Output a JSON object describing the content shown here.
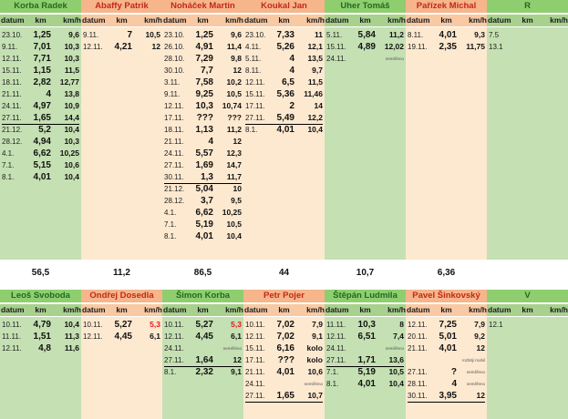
{
  "colors": {
    "green_header": "#8fce6f",
    "green_col": "#c5e0b3",
    "orange_header": "#f6b58a",
    "orange_col": "#fde9d0",
    "green_text": "#1f6b1f",
    "orange_text": "#c0281d",
    "subheader_green": "#a9d18e",
    "subheader_orange": "#f8c9a3"
  },
  "columns_label": {
    "datum": "datum",
    "km": "km",
    "kmh": "km/h"
  },
  "top": {
    "persons": [
      {
        "name": "Korba Radek",
        "theme": "green",
        "total": "56,5",
        "rows": [
          {
            "d": "23.10.",
            "k": "1,25",
            "s": "9,6"
          },
          {
            "d": "9.11.",
            "k": "7,01",
            "s": "10,3"
          },
          {
            "d": "12.11.",
            "k": "7,71",
            "s": "10,3"
          },
          {
            "d": "15.11.",
            "k": "1,15",
            "s": "11,5"
          },
          {
            "d": "18.11.",
            "k": "2,82",
            "s": "12,77"
          },
          {
            "d": "21.11.",
            "k": "4",
            "s": "13,8"
          },
          {
            "d": "24.11.",
            "k": "4,97",
            "s": "10,9"
          },
          {
            "d": "27.11.",
            "k": "1,65",
            "s": "14,4",
            "u": true
          },
          {
            "d": "21.12.",
            "k": "5,2",
            "s": "10,4"
          },
          {
            "d": "28.12.",
            "k": "4,94",
            "s": "10,3"
          },
          {
            "d": "4.1.",
            "k": "6,62",
            "s": "10,25"
          },
          {
            "d": "7.1.",
            "k": "5,15",
            "s": "10,6"
          },
          {
            "d": "8.1.",
            "k": "4,01",
            "s": "10,4"
          }
        ]
      },
      {
        "name": "Abaffy Patrik",
        "theme": "orange",
        "total": "11,2",
        "rows": [
          {
            "d": "9.11.",
            "k": "7",
            "s": "10,5"
          },
          {
            "d": "12.11.",
            "k": "4,21",
            "s": "12"
          }
        ]
      },
      {
        "name": "Noháček Martin",
        "theme": "orange",
        "total": "86,5",
        "rows": [
          {
            "d": "23.10.",
            "k": "1,25",
            "s": "9,6"
          },
          {
            "d": "26.10.",
            "k": "4,91",
            "s": "11,4"
          },
          {
            "d": "28.10.",
            "k": "7,29",
            "s": "9,8"
          },
          {
            "d": "30.10.",
            "k": "7,7",
            "s": "12"
          },
          {
            "d": "3.11.",
            "k": "7,58",
            "s": "10,2"
          },
          {
            "d": "9.11.",
            "k": "9,25",
            "s": "10,5"
          },
          {
            "d": "12.11.",
            "k": "10,3",
            "s": "10,74"
          },
          {
            "d": "17.11.",
            "k": "???",
            "s": "???"
          },
          {
            "d": "18.11.",
            "k": "1,13",
            "s": "11,2"
          },
          {
            "d": "21.11.",
            "k": "4",
            "s": "12"
          },
          {
            "d": "24.11.",
            "k": "5,57",
            "s": "12,3"
          },
          {
            "d": "27.11.",
            "k": "1,69",
            "s": "14,7"
          },
          {
            "d": "30.11.",
            "k": "1,3",
            "s": "11,7",
            "u": true
          },
          {
            "d": "21.12.",
            "k": "5,04",
            "s": "10"
          },
          {
            "d": "28.12.",
            "k": "3,7",
            "s": "9,5"
          },
          {
            "d": "4.1.",
            "k": "6,62",
            "s": "10,25"
          },
          {
            "d": "7.1.",
            "k": "5,19",
            "s": "10,5"
          },
          {
            "d": "8.1.",
            "k": "4,01",
            "s": "10,4"
          }
        ]
      },
      {
        "name": "Koukal Jan",
        "theme": "orange",
        "total": "44",
        "rows": [
          {
            "d": "23.10.",
            "k": "7,33",
            "s": "11"
          },
          {
            "d": "4.11.",
            "k": "5,26",
            "s": "12,1"
          },
          {
            "d": "5.11.",
            "k": "4",
            "s": "13,5"
          },
          {
            "d": "8.11.",
            "k": "4",
            "s": "9,7"
          },
          {
            "d": "12.11.",
            "k": "6,5",
            "s": "11,5"
          },
          {
            "d": "15.11.",
            "k": "5,36",
            "s": "11,46"
          },
          {
            "d": "17.11.",
            "k": "2",
            "s": "14"
          },
          {
            "d": "27.11.",
            "k": "5,49",
            "s": "12,2",
            "u": true
          },
          {
            "d": "8.1.",
            "k": "4,01",
            "s": "10,4"
          }
        ]
      },
      {
        "name": "Uher Tomáš",
        "theme": "green",
        "total": "10,7",
        "rows": [
          {
            "d": "5.11.",
            "k": "5,84",
            "s": "11,2"
          },
          {
            "d": "15.11.",
            "k": "4,89",
            "s": "12,02"
          },
          {
            "d": "24.11.",
            "k": "",
            "s": "neměřeno",
            "note": true
          }
        ]
      },
      {
        "name": "Pařízek Michal",
        "theme": "orange",
        "total": "6,36",
        "rows": [
          {
            "d": "8.11.",
            "k": "4,01",
            "s": "9,3"
          },
          {
            "d": "19.11.",
            "k": "2,35",
            "s": "11,75"
          }
        ]
      },
      {
        "name": "R",
        "theme": "green",
        "total": "",
        "rows": [
          {
            "d": "7.5",
            "k": "",
            "s": ""
          },
          {
            "d": "13.1",
            "k": "",
            "s": ""
          }
        ]
      }
    ]
  },
  "bottom": {
    "persons": [
      {
        "name": "Leoš Svoboda",
        "theme": "green",
        "rows": [
          {
            "d": "10.11.",
            "k": "4,79",
            "s": "10,4"
          },
          {
            "d": "11.11.",
            "k": "1,51",
            "s": "11,3"
          },
          {
            "d": "12.11.",
            "k": "4,8",
            "s": "11,6"
          }
        ]
      },
      {
        "name": "Ondřej Dosedla",
        "theme": "orange",
        "rows": [
          {
            "d": "10.11.",
            "k": "5,27",
            "s": "5,3",
            "red": true
          },
          {
            "d": "12.11.",
            "k": "4,45",
            "s": "6,1"
          }
        ]
      },
      {
        "name": "Šimon Korba",
        "theme": "green",
        "rows": [
          {
            "d": "10.11.",
            "k": "5,27",
            "s": "5,3",
            "red": true
          },
          {
            "d": "12.11.",
            "k": "4,45",
            "s": "6,1"
          },
          {
            "d": "24.11.",
            "k": "",
            "s": "neměřeno",
            "note": true
          },
          {
            "d": "27.11.",
            "k": "1,64",
            "s": "12",
            "u": true
          },
          {
            "d": "8.1.",
            "k": "2,32",
            "s": "9,1"
          }
        ]
      },
      {
        "name": "Petr Pojer",
        "theme": "orange",
        "rows": [
          {
            "d": "10.11.",
            "k": "7,02",
            "s": "7,9"
          },
          {
            "d": "12.11.",
            "k": "7,02",
            "s": "9,1"
          },
          {
            "d": "15.11.",
            "k": "6,16",
            "s": "kolo"
          },
          {
            "d": "17.11.",
            "k": "???",
            "s": "kolo"
          },
          {
            "d": "21.11.",
            "k": "4,01",
            "s": "10,6"
          },
          {
            "d": "24.11.",
            "k": "",
            "s": "neměřeno",
            "note": true
          },
          {
            "d": "27.11.",
            "k": "1,65",
            "s": "10,7",
            "u": true
          }
        ]
      },
      {
        "name": "Štěpán Ludmila",
        "theme": "green",
        "rows": [
          {
            "d": "11.11.",
            "k": "10,3",
            "s": "8"
          },
          {
            "d": "12.11.",
            "k": "6,51",
            "s": "7,4"
          },
          {
            "d": "24.11.",
            "k": "",
            "s": "neměřeno",
            "note": true
          },
          {
            "d": "27.11.",
            "k": "1,71",
            "s": "13,6",
            "u": true
          },
          {
            "d": "7.1.",
            "k": "5,19",
            "s": "10,5"
          },
          {
            "d": "8.1.",
            "k": "4,01",
            "s": "10,4"
          }
        ]
      },
      {
        "name": "Pavel Šinkovský",
        "theme": "orange",
        "rows": [
          {
            "d": "12.11.",
            "k": "7,25",
            "s": "7,9"
          },
          {
            "d": "20.11.",
            "k": "5,01",
            "s": "9,2"
          },
          {
            "d": "21.11.",
            "k": "4,01",
            "s": "12"
          },
          {
            "d": "",
            "k": "",
            "s": "rozbitý mobil",
            "note": true
          },
          {
            "d": "27.11.",
            "k": "?",
            "s": "neměřeno",
            "note": true
          },
          {
            "d": "28.11.",
            "k": "4",
            "s": "neměřeno",
            "note": true
          },
          {
            "d": "30.11.",
            "k": "3,95",
            "s": "12",
            "u": true
          }
        ]
      },
      {
        "name": "V",
        "theme": "green",
        "rows": [
          {
            "d": "12.1",
            "k": "",
            "s": ""
          }
        ]
      }
    ]
  }
}
